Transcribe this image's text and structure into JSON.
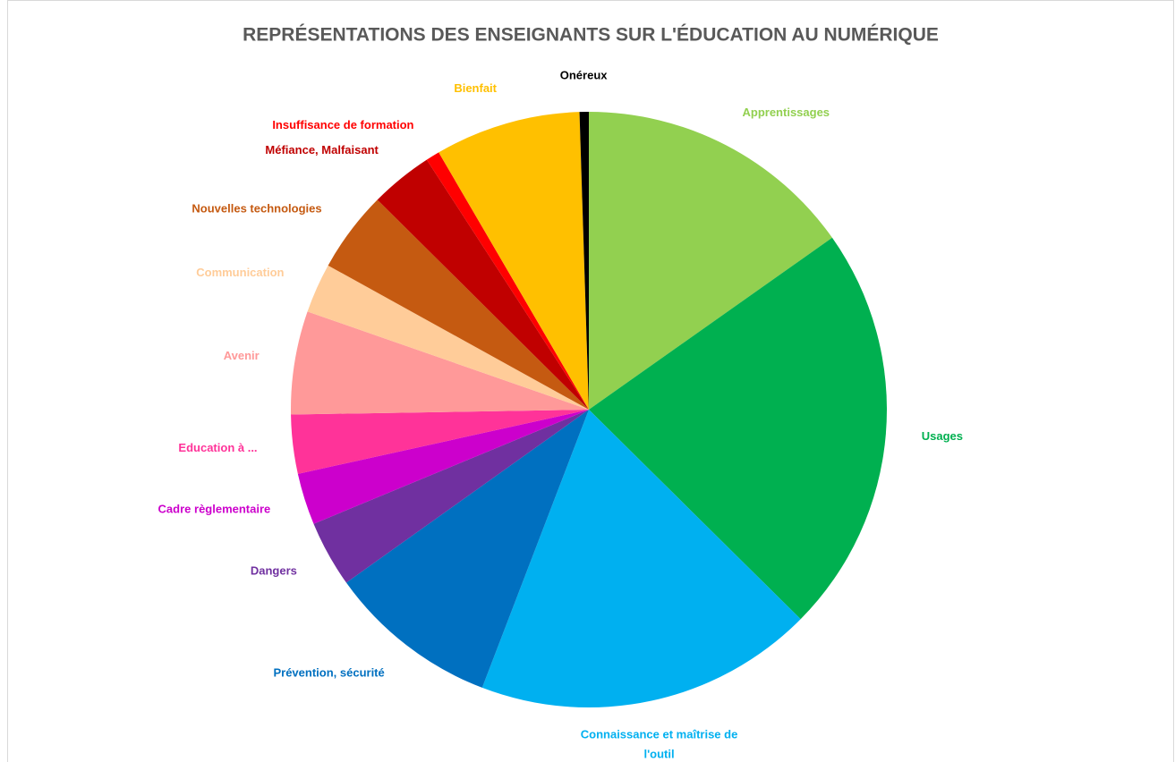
{
  "chart_data": {
    "type": "pie",
    "title": "REPRÉSENTATIONS DES ENSEIGNANTS SUR L'ÉDUCATION AU NUMÉRIQUE",
    "categories": [
      "Apprentissages",
      "Usages",
      "Connaissance  et maîtrise de l'outil",
      "Prévention, sécurité",
      "Dangers",
      "Cadre règlementaire",
      "Education à ...",
      "Avenir",
      "Communication",
      "Nouvelles technologies",
      "Méfiance, Malfaisant",
      "Insuffisance  de formation",
      "Bienfait",
      "Onéreux"
    ],
    "values": [
      15.2,
      22.2,
      18.4,
      9.3,
      3.6,
      2.8,
      3.2,
      5.6,
      2.7,
      4.4,
      3.4,
      0.75,
      7.9,
      0.5
    ],
    "colors": [
      "#92d050",
      "#00b050",
      "#00b0f0",
      "#0070c0",
      "#7030a0",
      "#cc00cc",
      "#ff3399",
      "#ff9999",
      "#ffcc99",
      "#c55a11",
      "#c00000",
      "#ff0000",
      "#ffc000",
      "#000000"
    ]
  }
}
